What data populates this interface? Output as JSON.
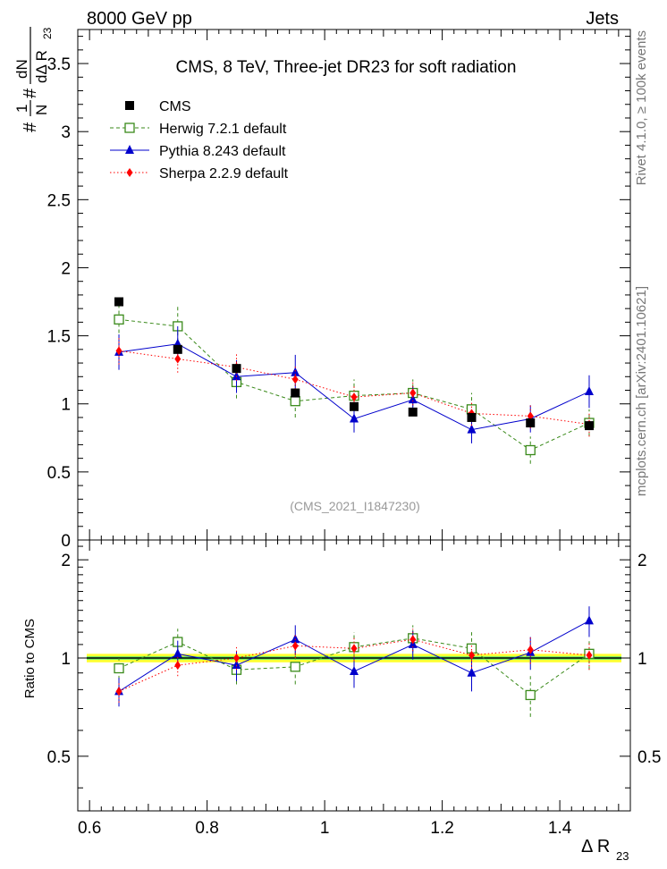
{
  "header": {
    "left": "8000 GeV pp",
    "right": "Jets"
  },
  "side_labels": {
    "rivet": "Rivet 4.1.0, ≥ 100k events",
    "mcplots": "mcplots.cern.ch [arXiv:2401.10621]"
  },
  "chart_data": {
    "type": "scatter",
    "title": "CMS, 8 TeV, Three-jet DR23 for soft radiation",
    "watermark": "(CMS_2021_I1847230)",
    "x": [
      0.65,
      0.75,
      0.85,
      0.95,
      1.05,
      1.15,
      1.25,
      1.35,
      1.45
    ],
    "xlim": [
      0.58,
      1.52
    ],
    "xticks": [
      0.6,
      0.8,
      1,
      1.2,
      1.4
    ],
    "xtick_labels": [
      "0.6",
      "0.8",
      "1",
      "1.2",
      "1.4"
    ],
    "xlabel": "Δ R",
    "xlabel_sub": "23",
    "top_panel": {
      "ylim": [
        0,
        3.75
      ],
      "yticks": [
        0,
        0.5,
        1,
        1.5,
        2,
        2.5,
        3,
        3.5
      ],
      "ytick_labels": [
        "0",
        "0.5",
        "1",
        "1.5",
        "2",
        "2.5",
        "3",
        "3.5"
      ],
      "ylabel_prefix": "#",
      "ylabel_frac1_num": "1",
      "ylabel_frac1_den": "N",
      "ylabel_mid": "#",
      "ylabel_frac2_num": "dN",
      "ylabel_frac2_den": "dΔ R",
      "ylabel_frac2_den_sub": "23"
    },
    "ratio_panel": {
      "ylim": [
        0.34,
        2.3
      ],
      "yticks": [
        0.5,
        1,
        2
      ],
      "ytick_labels": [
        "0.5",
        "1",
        "2"
      ],
      "ylabel": "Ratio to CMS"
    },
    "series": [
      {
        "name": "CMS",
        "color": "#000000",
        "marker": "square-filled",
        "values": [
          1.75,
          1.4,
          1.26,
          1.08,
          0.98,
          0.94,
          0.9,
          0.86,
          0.84
        ],
        "errors": [
          0.02,
          0.02,
          0.02,
          0.02,
          0.02,
          0.02,
          0.02,
          0.02,
          0.02
        ],
        "ratio": [
          1,
          1,
          1,
          1,
          1,
          1,
          1,
          1,
          1
        ]
      },
      {
        "name": "Herwig 7.2.1 default",
        "color": "#3a8a1a",
        "marker": "square-open",
        "line": "dashed",
        "values": [
          1.62,
          1.57,
          1.16,
          1.02,
          1.06,
          1.08,
          0.96,
          0.66,
          0.86
        ],
        "errors": [
          0.1,
          0.16,
          0.12,
          0.12,
          0.12,
          0.1,
          0.12,
          0.1,
          0.1
        ],
        "ratio": [
          0.93,
          1.12,
          0.92,
          0.94,
          1.08,
          1.15,
          1.07,
          0.77,
          1.03
        ],
        "ratio_errors": [
          0.07,
          0.11,
          0.09,
          0.11,
          0.12,
          0.11,
          0.13,
          0.11,
          0.11
        ]
      },
      {
        "name": "Pythia 8.243 default",
        "color": "#0000cc",
        "marker": "triangle-filled",
        "line": "solid",
        "values": [
          1.38,
          1.44,
          1.2,
          1.23,
          0.89,
          1.03,
          0.81,
          0.89,
          1.09
        ],
        "errors": [
          0.13,
          0.13,
          0.12,
          0.13,
          0.1,
          0.1,
          0.1,
          0.1,
          0.12
        ],
        "ratio": [
          0.79,
          1.03,
          0.95,
          1.14,
          0.91,
          1.1,
          0.9,
          1.04,
          1.3
        ],
        "ratio_errors": [
          0.08,
          0.1,
          0.1,
          0.12,
          0.1,
          0.11,
          0.11,
          0.12,
          0.14
        ]
      },
      {
        "name": "Sherpa 2.2.9 default",
        "color": "#ff0000",
        "marker": "diamond-filled",
        "line": "dotted",
        "values": [
          1.39,
          1.33,
          1.27,
          1.18,
          1.05,
          1.08,
          0.93,
          0.91,
          0.85
        ],
        "errors": [
          0.1,
          0.1,
          0.1,
          0.1,
          0.09,
          0.09,
          0.09,
          0.09,
          0.09
        ],
        "ratio": [
          0.79,
          0.95,
          1.0,
          1.09,
          1.07,
          1.14,
          1.02,
          1.06,
          1.02
        ],
        "ratio_errors": [
          0.06,
          0.07,
          0.08,
          0.09,
          0.09,
          0.09,
          0.09,
          0.1,
          0.1
        ]
      }
    ],
    "ratio_band": {
      "outer_color": "#ffff33",
      "inner_color": "#66ee66",
      "outer_halfwidth": 0.03,
      "inner_halfwidth": 0.012
    }
  }
}
